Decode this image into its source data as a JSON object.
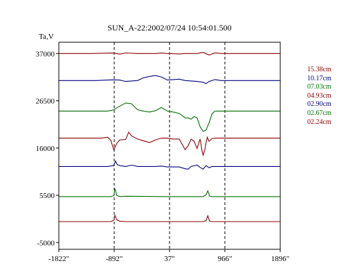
{
  "chart_data": {
    "type": "line",
    "title": "SUN_A-22:2002/07/24 10:54:01.500",
    "ylabel": "Ta,V",
    "xlabel": "",
    "xlim": [
      -1822,
      1896
    ],
    "ylim": [
      -6500,
      39500
    ],
    "x_ticks": [
      {
        "value": -1822,
        "label": "-1822\""
      },
      {
        "value": -892,
        "label": "-892\""
      },
      {
        "value": 37,
        "label": "37\""
      },
      {
        "value": 966,
        "label": "966\""
      },
      {
        "value": 1896,
        "label": "1896\""
      }
    ],
    "y_ticks": [
      {
        "value": 37000,
        "label": "37000"
      },
      {
        "value": 26500,
        "label": "26500"
      },
      {
        "value": 16000,
        "label": "16000"
      },
      {
        "value": 5500,
        "label": "5500"
      },
      {
        "value": -5000,
        "label": "-5000"
      }
    ],
    "reference_lines_x": [
      -892,
      37,
      966
    ],
    "legend_position": "right",
    "series": [
      {
        "name": "15.38cm",
        "color": "#8b0000",
        "baseline": 37000,
        "points": [
          [
            -1822,
            0
          ],
          [
            -1300,
            0
          ],
          [
            -1000,
            80
          ],
          [
            -900,
            100
          ],
          [
            -800,
            -150
          ],
          [
            -700,
            120
          ],
          [
            -500,
            0
          ],
          [
            -200,
            0
          ],
          [
            -100,
            100
          ],
          [
            0,
            0
          ],
          [
            200,
            -100
          ],
          [
            300,
            0
          ],
          [
            500,
            0
          ],
          [
            600,
            250
          ],
          [
            700,
            -350
          ],
          [
            800,
            150
          ],
          [
            900,
            0
          ],
          [
            1896,
            0
          ]
        ]
      },
      {
        "name": "10.17cm",
        "color": "#000080",
        "baseline": 31000,
        "points": [
          [
            -1822,
            0
          ],
          [
            -1200,
            0
          ],
          [
            -1000,
            100
          ],
          [
            -900,
            150
          ],
          [
            -800,
            100
          ],
          [
            -700,
            -200
          ],
          [
            -600,
            -100
          ],
          [
            -500,
            0
          ],
          [
            -400,
            600
          ],
          [
            -300,
            900
          ],
          [
            -200,
            1100
          ],
          [
            -100,
            800
          ],
          [
            0,
            100
          ],
          [
            100,
            200
          ],
          [
            200,
            300
          ],
          [
            300,
            0
          ],
          [
            400,
            -100
          ],
          [
            500,
            -200
          ],
          [
            600,
            -400
          ],
          [
            650,
            -700
          ],
          [
            700,
            -200
          ],
          [
            800,
            200
          ],
          [
            900,
            0
          ],
          [
            1000,
            0
          ],
          [
            1896,
            0
          ]
        ]
      },
      {
        "name": "07.03cm",
        "color": "#007000",
        "baseline": 24200,
        "points": [
          [
            -1822,
            0
          ],
          [
            -1000,
            0
          ],
          [
            -900,
            300
          ],
          [
            -800,
            1100
          ],
          [
            -700,
            1800
          ],
          [
            -600,
            1600
          ],
          [
            -500,
            300
          ],
          [
            -400,
            0
          ],
          [
            -300,
            -200
          ],
          [
            -200,
            100
          ],
          [
            -100,
            800
          ],
          [
            0,
            0
          ],
          [
            100,
            -200
          ],
          [
            200,
            -500
          ],
          [
            250,
            -1000
          ],
          [
            300,
            -1500
          ],
          [
            350,
            -1500
          ],
          [
            400,
            -1800
          ],
          [
            450,
            -1200
          ],
          [
            500,
            -1500
          ],
          [
            550,
            -3500
          ],
          [
            600,
            -4500
          ],
          [
            650,
            -4200
          ],
          [
            700,
            -2600
          ],
          [
            750,
            -600
          ],
          [
            800,
            0
          ],
          [
            1000,
            0
          ],
          [
            1896,
            0
          ]
        ]
      },
      {
        "name": "04.93cm",
        "color": "#8b0000",
        "baseline": 18200,
        "points": [
          [
            -1822,
            0
          ],
          [
            -1100,
            0
          ],
          [
            -1000,
            200
          ],
          [
            -950,
            -500
          ],
          [
            -900,
            -2600
          ],
          [
            -850,
            -1200
          ],
          [
            -800,
            -400
          ],
          [
            -700,
            -300
          ],
          [
            -650,
            1300
          ],
          [
            -600,
            500
          ],
          [
            -500,
            -200
          ],
          [
            -400,
            -600
          ],
          [
            -300,
            -1000
          ],
          [
            -200,
            -400
          ],
          [
            -100,
            0
          ],
          [
            0,
            0
          ],
          [
            100,
            -200
          ],
          [
            200,
            -200
          ],
          [
            250,
            -1400
          ],
          [
            300,
            -2600
          ],
          [
            350,
            -1700
          ],
          [
            400,
            -200
          ],
          [
            450,
            -700
          ],
          [
            500,
            -2300
          ],
          [
            530,
            -1000
          ],
          [
            550,
            -200
          ],
          [
            580,
            -2600
          ],
          [
            600,
            -3800
          ],
          [
            630,
            -2600
          ],
          [
            650,
            -1000
          ],
          [
            670,
            200
          ],
          [
            700,
            -700
          ],
          [
            750,
            -100
          ],
          [
            800,
            0
          ],
          [
            1000,
            0
          ],
          [
            1896,
            0
          ]
        ]
      },
      {
        "name": "02.90cm",
        "color": "#000080",
        "baseline": 11900,
        "points": [
          [
            -1822,
            0
          ],
          [
            -1000,
            0
          ],
          [
            -900,
            200
          ],
          [
            -870,
            1200
          ],
          [
            -840,
            400
          ],
          [
            -800,
            200
          ],
          [
            -700,
            0
          ],
          [
            -600,
            300
          ],
          [
            -500,
            0
          ],
          [
            -200,
            0
          ],
          [
            -100,
            100
          ],
          [
            0,
            -100
          ],
          [
            200,
            -100
          ],
          [
            300,
            -500
          ],
          [
            350,
            -600
          ],
          [
            400,
            0
          ],
          [
            500,
            300
          ],
          [
            550,
            -200
          ],
          [
            600,
            -600
          ],
          [
            650,
            200
          ],
          [
            700,
            -300
          ],
          [
            750,
            0
          ],
          [
            900,
            0
          ],
          [
            1896,
            0
          ]
        ]
      },
      {
        "name": "02.67cm",
        "color": "#007000",
        "baseline": 5200,
        "points": [
          [
            -1822,
            0
          ],
          [
            -950,
            0
          ],
          [
            -900,
            200
          ],
          [
            -880,
            1800
          ],
          [
            -850,
            300
          ],
          [
            -800,
            0
          ],
          [
            -700,
            100
          ],
          [
            0,
            0
          ],
          [
            600,
            0
          ],
          [
            650,
            400
          ],
          [
            680,
            1300
          ],
          [
            710,
            100
          ],
          [
            750,
            0
          ],
          [
            1896,
            0
          ]
        ]
      },
      {
        "name": "02.24cm",
        "color": "#8b0000",
        "baseline": -350,
        "points": [
          [
            -1822,
            0
          ],
          [
            -950,
            0
          ],
          [
            -900,
            300
          ],
          [
            -880,
            1400
          ],
          [
            -850,
            400
          ],
          [
            -800,
            100
          ],
          [
            -700,
            0
          ],
          [
            0,
            0
          ],
          [
            600,
            0
          ],
          [
            650,
            200
          ],
          [
            680,
            1300
          ],
          [
            710,
            100
          ],
          [
            750,
            0
          ],
          [
            1896,
            0
          ]
        ]
      }
    ]
  }
}
